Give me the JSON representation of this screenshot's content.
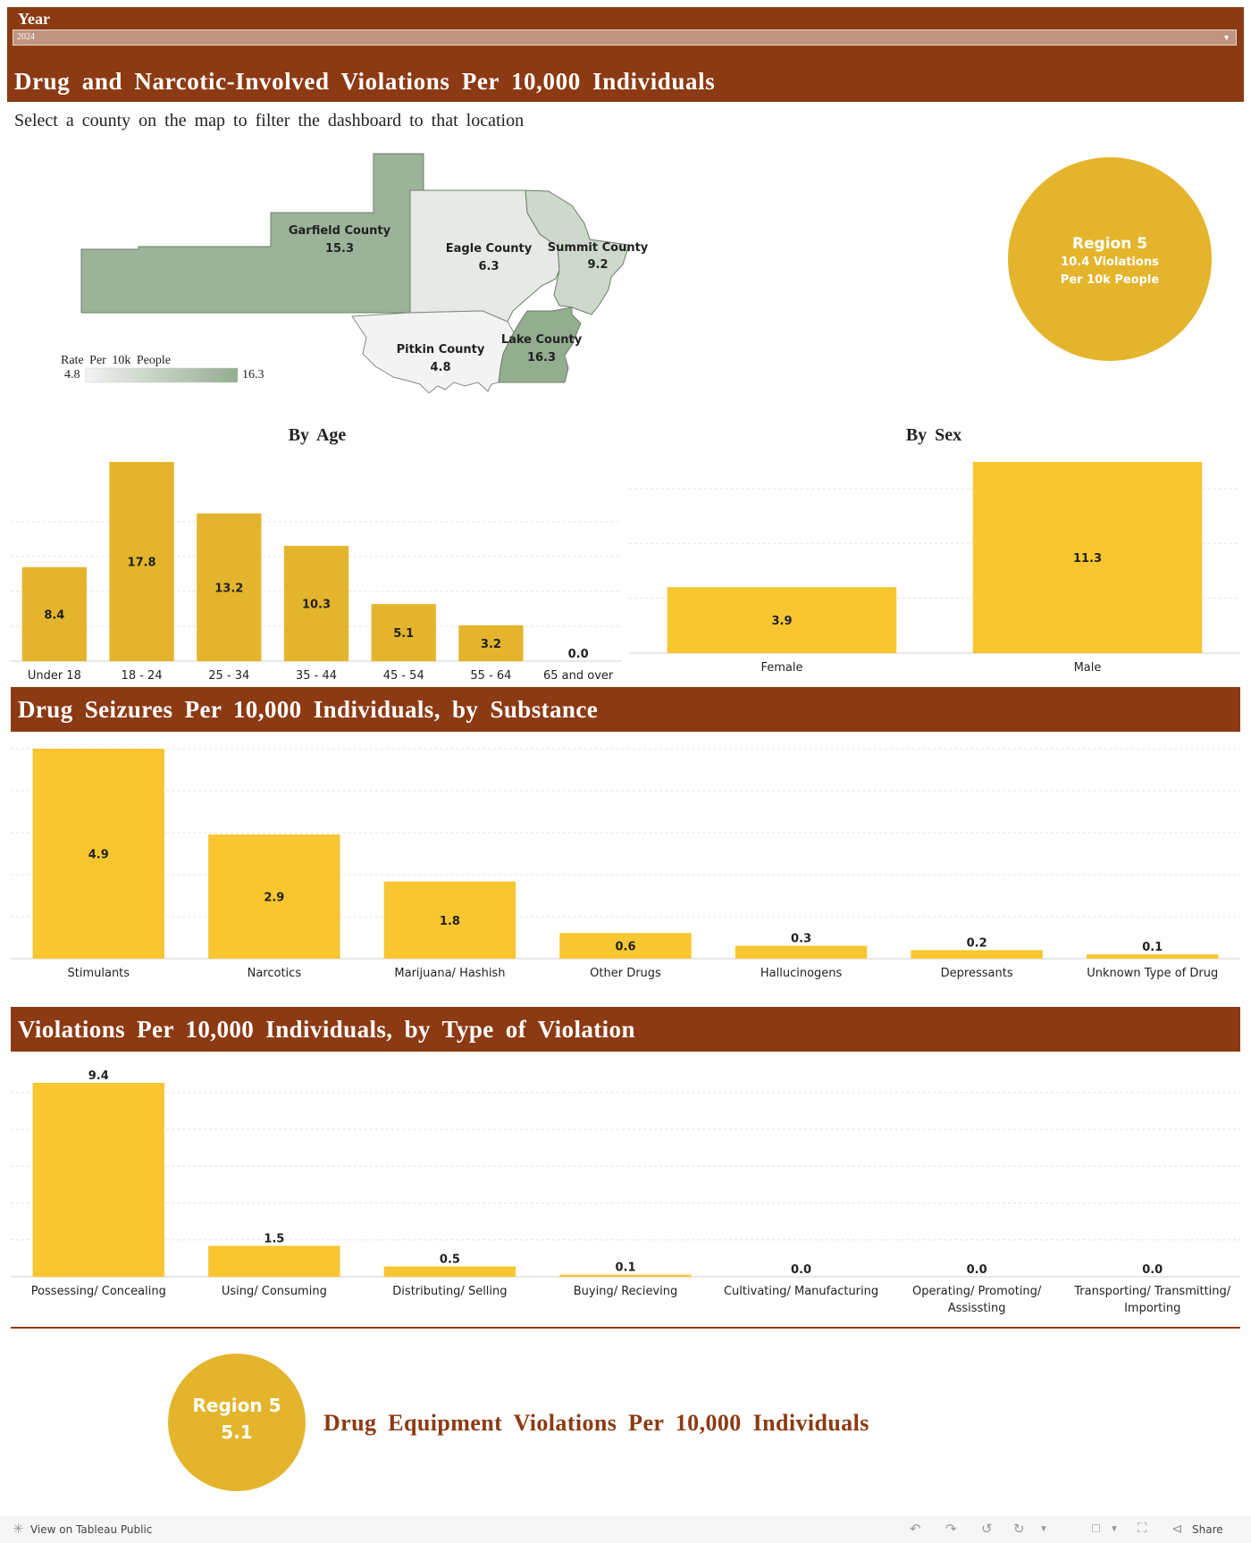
{
  "filter": {
    "label": "Year",
    "selected": "2024"
  },
  "header": {
    "title": "Drug and Narcotic-Involved Violations Per 10,000 Individuals",
    "subtitle": "Select a county on the map to filter the dashboard to that location"
  },
  "map": {
    "legend_title": "Rate Per 10k People",
    "legend_min": "4.8",
    "legend_max": "16.3",
    "colors": {
      "low": "#f2f3f2",
      "high": "#93ad8f"
    },
    "counties": [
      {
        "name": "Garfield County",
        "value": 15.3,
        "label": "15.3"
      },
      {
        "name": "Eagle County",
        "value": 6.3,
        "label": "6.3"
      },
      {
        "name": "Summit County",
        "value": 9.2,
        "label": "9.2"
      },
      {
        "name": "Pitkin County",
        "value": 4.8,
        "label": "4.8"
      },
      {
        "name": "Lake County",
        "value": 16.3,
        "label": "16.3"
      }
    ]
  },
  "region_kpi": {
    "line1": "Region 5",
    "line2": "10.4 Violations",
    "line3": "Per 10k People"
  },
  "section_titles": {
    "substance": "Drug Seizures Per 10,000 Individuals, by Substance",
    "violation_type": "Violations Per 10,000 Individuals, by Type of Violation"
  },
  "equipment": {
    "line1": "Region 5",
    "line2": "5.1",
    "title": "Drug Equipment Violations Per 10,000 Individuals"
  },
  "footer": {
    "view_label": "View on Tableau Public",
    "share_label": "Share"
  },
  "colors": {
    "brown": "#8c3a13",
    "bar_dark": "#e4b52c",
    "bar_light": "#f8c630"
  },
  "chart_data": [
    {
      "type": "bar",
      "title": "By Age",
      "categories": [
        "Under 18",
        "18 - 24",
        "25 - 34",
        "35 - 44",
        "45 - 54",
        "55 - 64",
        "65 and over"
      ],
      "values": [
        8.4,
        17.8,
        13.2,
        10.3,
        5.1,
        3.2,
        0.0
      ],
      "labels": [
        "8.4",
        "17.8",
        "13.2",
        "10.3",
        "5.1",
        "3.2",
        "0.0"
      ],
      "ylim": [
        0,
        17.8
      ],
      "grid": true
    },
    {
      "type": "bar",
      "title": "By Sex",
      "categories": [
        "Female",
        "Male"
      ],
      "values": [
        3.9,
        11.3
      ],
      "labels": [
        "3.9",
        "11.3"
      ],
      "ylim": [
        0,
        11.3
      ],
      "grid": true
    },
    {
      "type": "bar",
      "categories": [
        "Stimulants",
        "Narcotics",
        "Marijuana/ Hashish",
        "Other Drugs",
        "Hallucinogens",
        "Depressants",
        "Unknown Type of Drug"
      ],
      "values": [
        4.9,
        2.9,
        1.8,
        0.6,
        0.3,
        0.2,
        0.1
      ],
      "labels": [
        "4.9",
        "2.9",
        "1.8",
        "0.6",
        "0.3",
        "0.2",
        "0.1"
      ],
      "ylim": [
        0,
        4.9
      ],
      "grid": true
    },
    {
      "type": "bar",
      "categories": [
        "Possessing/ Concealing",
        "Using/ Consuming",
        "Distributing/ Selling",
        "Buying/ Recieving",
        "Cultivating/ Manufacturing",
        "Operating/ Promoting/ Assissting",
        "Transporting/ Transmitting/ Importing"
      ],
      "values": [
        9.4,
        1.5,
        0.5,
        0.1,
        0.0,
        0.0,
        0.0
      ],
      "labels": [
        "9.4",
        "1.5",
        "0.5",
        "0.1",
        "0.0",
        "0.0",
        "0.0"
      ],
      "ylim": [
        0,
        9.4
      ],
      "grid": true
    }
  ]
}
